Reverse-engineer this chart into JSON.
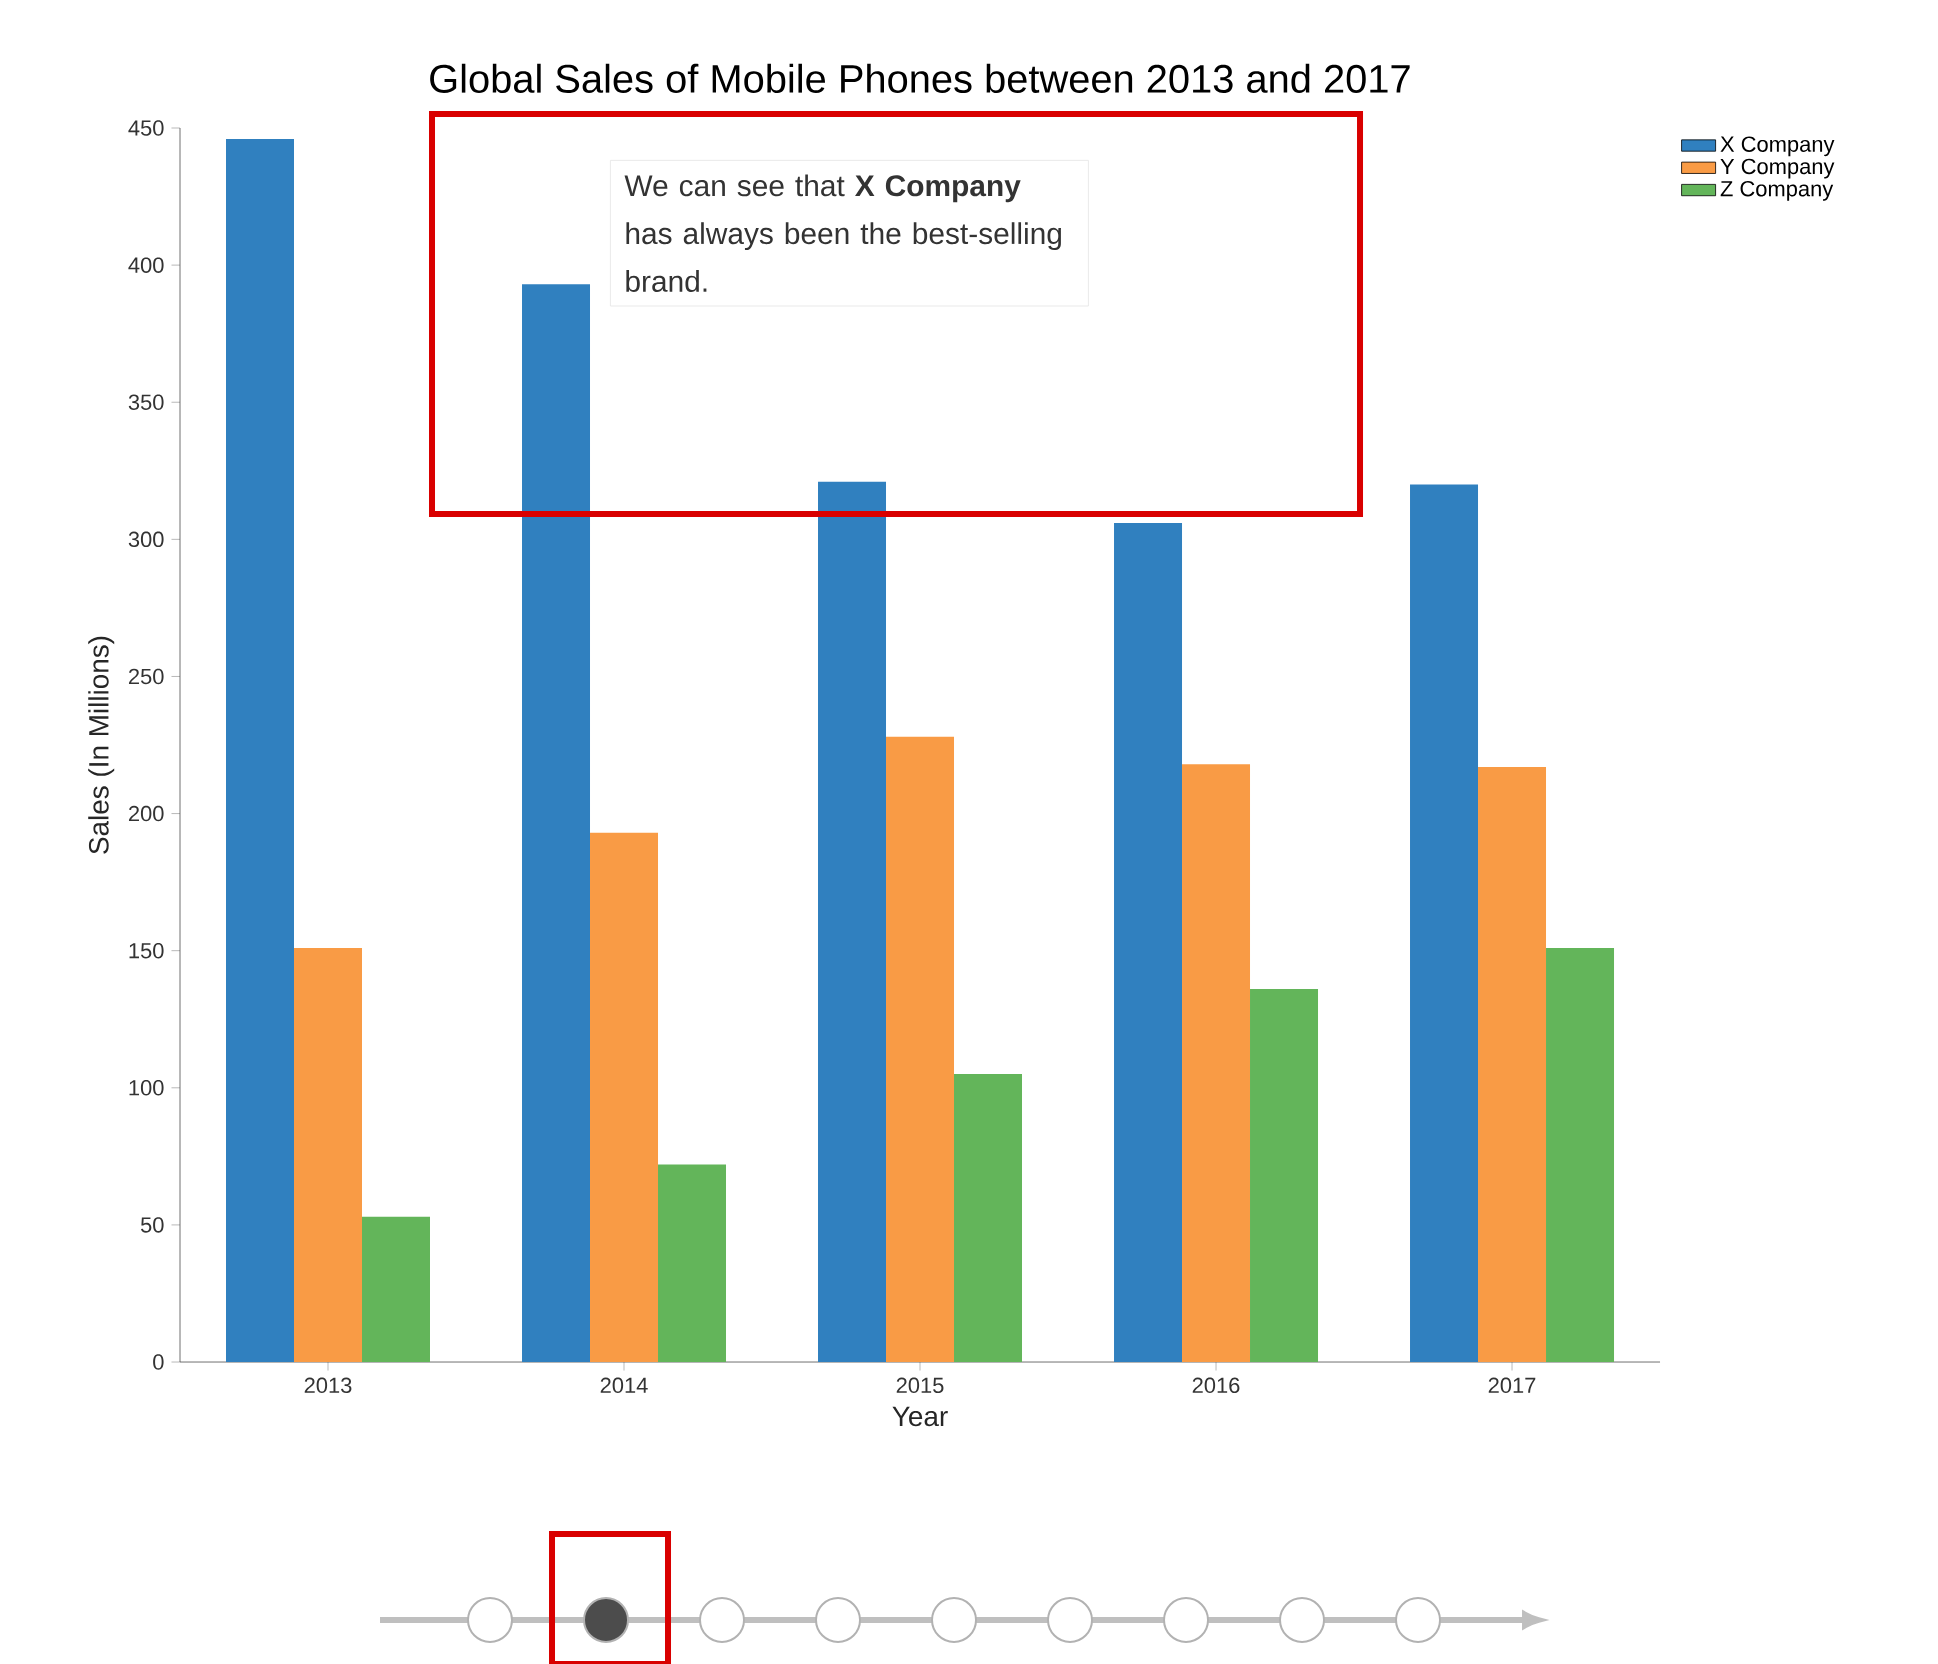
{
  "chart_data": {
    "type": "bar",
    "title": "Global Sales of Mobile Phones between 2013 and 2017",
    "xlabel": "Year",
    "ylabel": "Sales (In Millions)",
    "categories": [
      "2013",
      "2014",
      "2015",
      "2016",
      "2017"
    ],
    "series": [
      {
        "name": "X Company",
        "color": "#3080bf",
        "values": [
          446,
          393,
          321,
          306,
          320
        ]
      },
      {
        "name": "Y Company",
        "color": "#f99b45",
        "values": [
          151,
          193,
          228,
          218,
          217
        ]
      },
      {
        "name": "Z Company",
        "color": "#63b55a",
        "values": [
          53,
          72,
          105,
          136,
          151
        ]
      }
    ],
    "ylim": [
      0,
      450
    ],
    "yticks": [
      0,
      50,
      100,
      150,
      200,
      250,
      300,
      350,
      400,
      450
    ],
    "legend": "top right",
    "annotations": [
      "We can see that **X Company** has always been the best-selling brand."
    ]
  }
}
